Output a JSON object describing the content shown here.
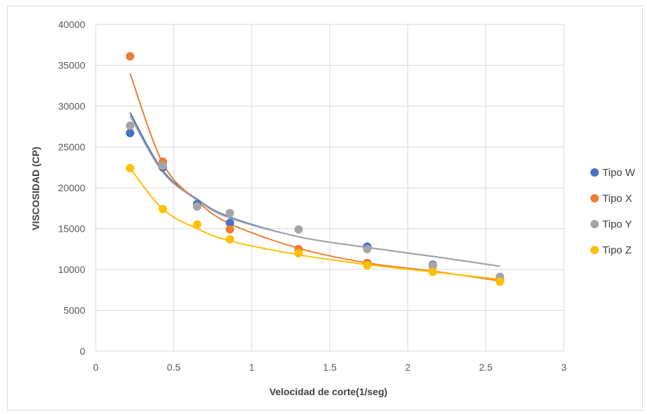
{
  "chart_data": {
    "type": "scatter",
    "title": "",
    "xlabel": "Velocidad de corte(1/seg)",
    "ylabel": "VISCOSIDAD (CP)",
    "xlim": [
      0,
      3
    ],
    "ylim": [
      0,
      40000
    ],
    "x_ticks": [
      "0",
      "0.5",
      "1",
      "1.5",
      "2",
      "2.5",
      "3"
    ],
    "y_ticks": [
      "0",
      "5000",
      "10000",
      "15000",
      "20000",
      "25000",
      "30000",
      "35000",
      "40000"
    ],
    "grid": "horizontal and vertical",
    "legend_position": "right",
    "series": [
      {
        "name": "Tipo W",
        "color": "#4472c4",
        "points": [
          [
            0.22,
            26700
          ],
          [
            0.43,
            22500
          ],
          [
            0.65,
            18000
          ],
          [
            0.86,
            15700
          ],
          [
            1.3,
            12000
          ],
          [
            1.74,
            12800
          ],
          [
            2.16,
            10600
          ],
          [
            2.59,
            9100
          ]
        ],
        "trend_points": [
          [
            0.22,
            29200
          ],
          [
            0.43,
            22100
          ],
          [
            0.65,
            18600
          ],
          [
            0.86,
            16400
          ],
          [
            1.3,
            14000
          ],
          [
            1.74,
            12700
          ],
          [
            2.16,
            11600
          ],
          [
            2.59,
            10400
          ]
        ]
      },
      {
        "name": "Tipo X",
        "color": "#ed7d31",
        "points": [
          [
            0.22,
            36100
          ],
          [
            0.43,
            23200
          ],
          [
            0.65,
            17700
          ],
          [
            0.86,
            14900
          ],
          [
            1.3,
            12500
          ],
          [
            1.74,
            10800
          ],
          [
            2.16,
            10400
          ],
          [
            2.59,
            8700
          ]
        ],
        "trend_points": [
          [
            0.22,
            34000
          ],
          [
            0.43,
            23000
          ],
          [
            0.65,
            18400
          ],
          [
            0.86,
            15600
          ],
          [
            1.3,
            12600
          ],
          [
            1.74,
            10800
          ],
          [
            2.16,
            9800
          ],
          [
            2.59,
            8600
          ]
        ]
      },
      {
        "name": "Tipo Y",
        "color": "#a5a5a5",
        "points": [
          [
            0.22,
            27600
          ],
          [
            0.43,
            22700
          ],
          [
            0.65,
            17700
          ],
          [
            0.86,
            16900
          ],
          [
            1.3,
            14900
          ],
          [
            1.74,
            12500
          ],
          [
            2.16,
            10500
          ],
          [
            2.59,
            9100
          ]
        ],
        "trend_points": [
          [
            0.22,
            28800
          ],
          [
            0.43,
            21900
          ],
          [
            0.65,
            18500
          ],
          [
            0.86,
            16300
          ],
          [
            1.3,
            14000
          ],
          [
            1.74,
            12700
          ],
          [
            2.16,
            11600
          ],
          [
            2.59,
            10400
          ]
        ]
      },
      {
        "name": "Tipo Z",
        "color": "#ffc000",
        "points": [
          [
            0.22,
            22400
          ],
          [
            0.43,
            17400
          ],
          [
            0.65,
            15500
          ],
          [
            0.86,
            13700
          ],
          [
            1.3,
            12000
          ],
          [
            1.74,
            10500
          ],
          [
            2.16,
            9700
          ],
          [
            2.59,
            8500
          ]
        ],
        "trend_points": [
          [
            0.22,
            22400
          ],
          [
            0.43,
            17400
          ],
          [
            0.65,
            15000
          ],
          [
            0.86,
            13500
          ],
          [
            1.3,
            11800
          ],
          [
            1.74,
            10600
          ],
          [
            2.16,
            9700
          ],
          [
            2.59,
            8800
          ]
        ]
      }
    ]
  }
}
